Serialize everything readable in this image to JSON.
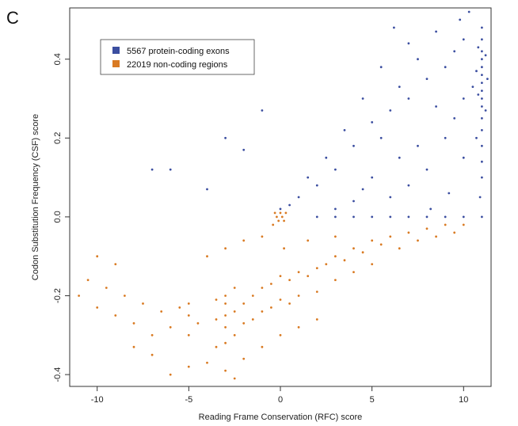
{
  "panel_label": "C",
  "chart_data": {
    "type": "scatter",
    "title": "",
    "xlabel": "Reading Frame Conservation (RFC) score",
    "ylabel": "Codon Substitution Frequency (CSF) score",
    "xlim": [
      -11.5,
      11.5
    ],
    "ylim": [
      -0.43,
      0.53
    ],
    "x_ticks": [
      -10,
      -5,
      0,
      5,
      10
    ],
    "x_tick_labels": [
      "-10",
      "-5",
      "0",
      "5",
      "10"
    ],
    "y_ticks": [
      -0.4,
      -0.2,
      0.0,
      0.2,
      0.4
    ],
    "y_tick_labels": [
      "-0.4",
      "-0.2",
      "0.0",
      "0.2",
      "0.4"
    ],
    "grid": false,
    "legend_position": "top-left",
    "series": [
      {
        "name": "5567 protein-coding exons",
        "color": "#3b4ea0",
        "points": [
          [
            11,
            0.48
          ],
          [
            11,
            0.45
          ],
          [
            11,
            0.42
          ],
          [
            11,
            0.4
          ],
          [
            11,
            0.38
          ],
          [
            11,
            0.36
          ],
          [
            11,
            0.34
          ],
          [
            11,
            0.32
          ],
          [
            11,
            0.3
          ],
          [
            11,
            0.28
          ],
          [
            11,
            0.25
          ],
          [
            11,
            0.22
          ],
          [
            11,
            0.18
          ],
          [
            11,
            0.14
          ],
          [
            11,
            0.1
          ],
          [
            10.8,
            0.43
          ],
          [
            10.8,
            0.31
          ],
          [
            10.7,
            0.37
          ],
          [
            10.7,
            0.2
          ],
          [
            11.2,
            0.41
          ],
          [
            11.2,
            0.27
          ],
          [
            11.3,
            0.35
          ],
          [
            10.5,
            0.33
          ],
          [
            10,
            0.45
          ],
          [
            10,
            0.3
          ],
          [
            10,
            0.15
          ],
          [
            9.5,
            0.42
          ],
          [
            9.5,
            0.25
          ],
          [
            9,
            0.38
          ],
          [
            9,
            0.2
          ],
          [
            8.5,
            0.47
          ],
          [
            8.5,
            0.28
          ],
          [
            8,
            0.35
          ],
          [
            8,
            0.12
          ],
          [
            7.5,
            0.4
          ],
          [
            7.5,
            0.18
          ],
          [
            7,
            0.44
          ],
          [
            7,
            0.3
          ],
          [
            7,
            0.08
          ],
          [
            6.5,
            0.33
          ],
          [
            6.5,
            0.15
          ],
          [
            6,
            0.27
          ],
          [
            6,
            0.05
          ],
          [
            5.5,
            0.38
          ],
          [
            5.5,
            0.2
          ],
          [
            5,
            0.24
          ],
          [
            5,
            0.1
          ],
          [
            4.5,
            0.3
          ],
          [
            4.5,
            0.07
          ],
          [
            4,
            0.18
          ],
          [
            4,
            0.04
          ],
          [
            3.5,
            0.22
          ],
          [
            3,
            0.12
          ],
          [
            3,
            0.02
          ],
          [
            2.5,
            0.15
          ],
          [
            2,
            0.08
          ],
          [
            1.5,
            0.1
          ],
          [
            1,
            0.05
          ],
          [
            0.5,
            0.03
          ],
          [
            0,
            0.02
          ],
          [
            -1,
            0.27
          ],
          [
            -2,
            0.17
          ],
          [
            -3,
            0.2
          ],
          [
            -6,
            0.12
          ],
          [
            -7,
            0.12
          ],
          [
            -4,
            0.07
          ],
          [
            9.8,
            0.5
          ],
          [
            10.3,
            0.52
          ],
          [
            6.2,
            0.48
          ],
          [
            8.2,
            0.02
          ],
          [
            9.2,
            0.06
          ],
          [
            10.9,
            0.05
          ],
          [
            11,
            0.0
          ],
          [
            10,
            0.0
          ],
          [
            9,
            0.0
          ],
          [
            8,
            0.0
          ],
          [
            7,
            0.0
          ],
          [
            6,
            0.0
          ],
          [
            5,
            0.0
          ],
          [
            4,
            0.0
          ],
          [
            3,
            0.0
          ],
          [
            2,
            0.0
          ]
        ]
      },
      {
        "name": "22019 non-coding regions",
        "color": "#d97a22",
        "points": [
          [
            -3,
            -0.25
          ],
          [
            -3,
            -0.22
          ],
          [
            -3,
            -0.28
          ],
          [
            -3,
            -0.2
          ],
          [
            -3,
            -0.32
          ],
          [
            -2.5,
            -0.24
          ],
          [
            -2.5,
            -0.18
          ],
          [
            -2.5,
            -0.3
          ],
          [
            -3.5,
            -0.26
          ],
          [
            -3.5,
            -0.21
          ],
          [
            -3.5,
            -0.33
          ],
          [
            -5,
            -0.25
          ],
          [
            -5,
            -0.22
          ],
          [
            -5,
            -0.3
          ],
          [
            -4.5,
            -0.27
          ],
          [
            -5.5,
            -0.23
          ],
          [
            -2,
            -0.22
          ],
          [
            -2,
            -0.27
          ],
          [
            -1.5,
            -0.2
          ],
          [
            -1.5,
            -0.26
          ],
          [
            -1,
            -0.18
          ],
          [
            -1,
            -0.24
          ],
          [
            -0.5,
            -0.17
          ],
          [
            -0.5,
            -0.23
          ],
          [
            0,
            -0.15
          ],
          [
            0,
            -0.21
          ],
          [
            0.5,
            -0.16
          ],
          [
            0.5,
            -0.22
          ],
          [
            1,
            -0.14
          ],
          [
            1,
            -0.2
          ],
          [
            1.5,
            -0.15
          ],
          [
            2,
            -0.13
          ],
          [
            2,
            -0.19
          ],
          [
            2.5,
            -0.12
          ],
          [
            3,
            -0.1
          ],
          [
            3,
            -0.16
          ],
          [
            3.5,
            -0.11
          ],
          [
            4,
            -0.08
          ],
          [
            4,
            -0.14
          ],
          [
            4.5,
            -0.09
          ],
          [
            5,
            -0.06
          ],
          [
            5,
            -0.12
          ],
          [
            5.5,
            -0.07
          ],
          [
            6,
            -0.05
          ],
          [
            6.5,
            -0.08
          ],
          [
            7,
            -0.04
          ],
          [
            7.5,
            -0.06
          ],
          [
            8,
            -0.03
          ],
          [
            8.5,
            -0.05
          ],
          [
            9,
            -0.02
          ],
          [
            9.5,
            -0.04
          ],
          [
            10,
            -0.02
          ],
          [
            -6,
            -0.28
          ],
          [
            -6.5,
            -0.24
          ],
          [
            -7,
            -0.3
          ],
          [
            -7.5,
            -0.22
          ],
          [
            -8,
            -0.27
          ],
          [
            -8.5,
            -0.2
          ],
          [
            -9,
            -0.25
          ],
          [
            -9.5,
            -0.18
          ],
          [
            -10,
            -0.23
          ],
          [
            -10.5,
            -0.16
          ],
          [
            -11,
            -0.2
          ],
          [
            -7,
            -0.35
          ],
          [
            -8,
            -0.33
          ],
          [
            -9,
            -0.12
          ],
          [
            -10,
            -0.1
          ],
          [
            -4,
            -0.37
          ],
          [
            -3,
            -0.39
          ],
          [
            -2,
            -0.36
          ],
          [
            -1,
            -0.33
          ],
          [
            0,
            -0.3
          ],
          [
            1,
            -0.28
          ],
          [
            2,
            -0.26
          ],
          [
            -4,
            -0.1
          ],
          [
            -3,
            -0.08
          ],
          [
            -2,
            -0.06
          ],
          [
            -1,
            -0.05
          ],
          [
            0.2,
            -0.08
          ],
          [
            1.5,
            -0.06
          ],
          [
            3,
            -0.05
          ],
          [
            -0.2,
            0.0
          ],
          [
            -0.3,
            0.01
          ],
          [
            0.1,
            0.0
          ],
          [
            0.2,
            -0.01
          ],
          [
            -0.1,
            -0.01
          ],
          [
            0,
            0.01
          ],
          [
            -0.4,
            -0.02
          ],
          [
            0.3,
            0.01
          ],
          [
            -6,
            -0.4
          ],
          [
            -5,
            -0.38
          ],
          [
            -2.5,
            -0.41
          ]
        ]
      }
    ]
  }
}
